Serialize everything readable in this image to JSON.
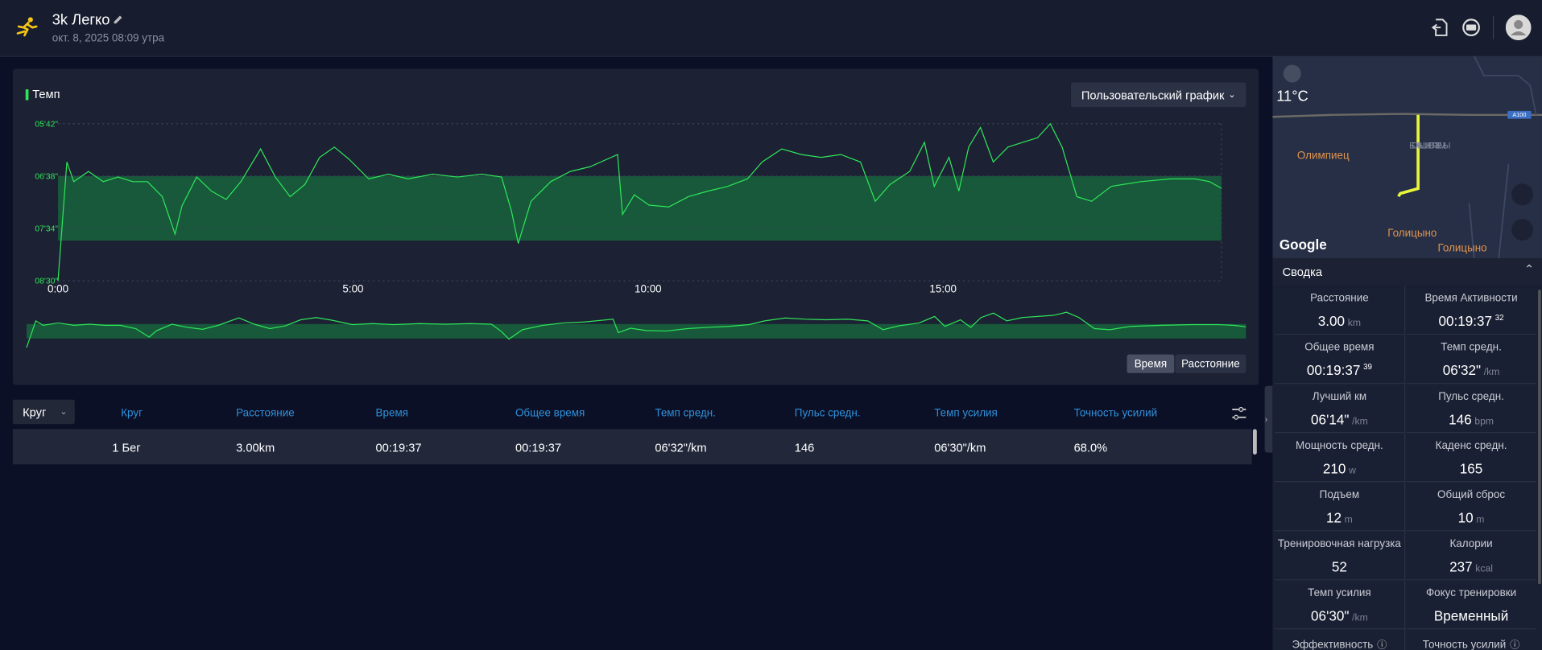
{
  "header": {
    "title": "3k Легко",
    "subtitle": "окт. 8, 2025 08:09 утра"
  },
  "chart_data": {
    "type": "line",
    "legend": "Темп",
    "ylim": [
      342,
      510
    ],
    "y_inverted": true,
    "xlim": [
      0,
      1183
    ],
    "yticks": [
      {
        "value": 342,
        "label": "05'42\""
      },
      {
        "value": 398,
        "label": "06'38\""
      },
      {
        "value": 454,
        "label": "07'34\""
      },
      {
        "value": 510,
        "label": "08'30\""
      }
    ],
    "xticks": [
      {
        "value": 0,
        "label": "0:00"
      },
      {
        "value": 300,
        "label": "5:00"
      },
      {
        "value": 600,
        "label": "10:00"
      },
      {
        "value": 900,
        "label": "15:00"
      }
    ],
    "target_zone": [
      398,
      467
    ],
    "zone_color": "#17593a",
    "grid": true,
    "x": [
      0,
      9,
      16,
      31,
      46,
      61,
      76,
      91,
      106,
      119,
      126,
      141,
      156,
      171,
      186,
      206,
      221,
      236,
      251,
      266,
      281,
      296,
      316,
      336,
      356,
      381,
      406,
      431,
      451,
      461,
      468,
      481,
      501,
      521,
      541,
      569,
      574,
      586,
      601,
      621,
      641,
      661,
      681,
      701,
      716,
      736,
      756,
      776,
      796,
      816,
      831,
      846,
      866,
      881,
      891,
      906,
      916,
      926,
      938,
      951,
      966,
      981,
      996,
      1009,
      1021,
      1036,
      1051,
      1071,
      1101,
      1131,
      1156,
      1171,
      1183
    ],
    "series": [
      {
        "name": "Темп",
        "color": "#2ee65a",
        "values": [
          510,
          383,
          404,
          393,
          404,
          399,
          404,
          404,
          420,
          460,
          430,
          399,
          414,
          423,
          404,
          369,
          399,
          420,
          407,
          378,
          367,
          380,
          401,
          396,
          401,
          396,
          399,
          396,
          399,
          435,
          470,
          425,
          404,
          393,
          388,
          375,
          439,
          418,
          429,
          431,
          420,
          414,
          409,
          401,
          383,
          369,
          375,
          378,
          375,
          383,
          425,
          407,
          393,
          362,
          409,
          378,
          414,
          367,
          346,
          383,
          367,
          362,
          357,
          342,
          367,
          420,
          425,
          409,
          404,
          401,
          401,
          404,
          411
        ]
      }
    ]
  },
  "chart_controls": {
    "custom": "Пользовательский график",
    "time": "Время",
    "distance": "Расстояние"
  },
  "table": {
    "dropdown": "Круг",
    "headers": [
      "Круг",
      "Расстояние",
      "Время",
      "Общее время",
      "Темп средн.",
      "Пульс средн.",
      "Темп усилия",
      "Точность усилий"
    ],
    "rows": [
      [
        "1 Бег",
        "3.00km",
        "00:19:37",
        "00:19:37",
        "06'32\"/km",
        "146",
        "06'30\"/km",
        "68.0%"
      ]
    ]
  },
  "map": {
    "temperature": "11°C",
    "road": "A100",
    "place1": "Олимпиец",
    "place2": "БОЛЬШИЕ ВЯЗЕМЫ",
    "place3": "Голицыно",
    "place4": "Голицыно",
    "brand": "Google"
  },
  "summary": {
    "title": "Сводка",
    "items": [
      {
        "label": "Расстояние",
        "value": "3.00",
        "unit": "km"
      },
      {
        "label": "Время Активности",
        "value": "00:19:37",
        "sup": "32"
      },
      {
        "label": "Общее время",
        "value": "00:19:37",
        "sup": "39"
      },
      {
        "label": "Темп средн.",
        "value": "06'32\"",
        "unit": "/km"
      },
      {
        "label": "Лучший км",
        "value": "06'14\"",
        "unit": "/km"
      },
      {
        "label": "Пульс средн.",
        "value": "146",
        "unit": "bpm"
      },
      {
        "label": "Мощность средн.",
        "value": "210",
        "unit": "w"
      },
      {
        "label": "Каденс средн.",
        "value": "165"
      },
      {
        "label": "Подъем",
        "value": "12",
        "unit": "m"
      },
      {
        "label": "Общий сброс",
        "value": "10",
        "unit": "m"
      },
      {
        "label": "Тренировочная нагрузка",
        "value": "52"
      },
      {
        "label": "Калории",
        "value": "237",
        "unit": "kcal"
      },
      {
        "label": "Темп усилия",
        "value": "06'30\"",
        "unit": "/km"
      },
      {
        "label": "Фокус тренировки",
        "value": "Временный"
      },
      {
        "label": "Эффективность"
      },
      {
        "label": "Точность усилий"
      }
    ]
  }
}
